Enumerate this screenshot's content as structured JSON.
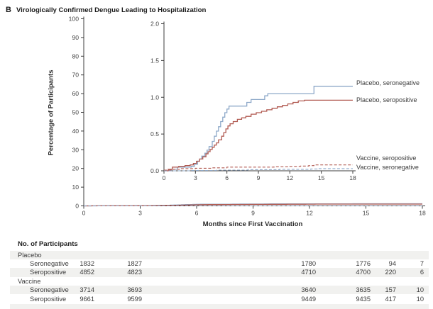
{
  "figure": {
    "panel_letter": "B",
    "title": "Virologically Confirmed Dengue Leading to Hospitalization"
  },
  "colors": {
    "placebo_line_blue": "#8ea9c9",
    "placebo_line_red": "#b15a51",
    "axis": "#3c3c3c",
    "table_band": "#f1f1ef"
  },
  "chart_data": {
    "type": "line",
    "title": "",
    "xlabel": "Months since First Vaccination",
    "ylabel": "Percentage of Participants",
    "main_axis": {
      "xlim": [
        0,
        18
      ],
      "ylim": [
        0,
        100
      ],
      "x_ticks": [
        0,
        3,
        6,
        9,
        12,
        15,
        18
      ],
      "y_ticks": [
        0,
        10,
        20,
        30,
        40,
        50,
        60,
        70,
        80,
        90,
        100
      ],
      "grid": false
    },
    "inset_axis": {
      "xlim": [
        0,
        18
      ],
      "ylim": [
        0,
        2.0
      ],
      "x_ticks": [
        0,
        3,
        6,
        9,
        12,
        15,
        18
      ],
      "y_ticks": [
        0,
        0.5,
        1.0,
        1.5,
        2.0
      ],
      "y_tick_labels": [
        "0.0",
        "0.5",
        "1.0",
        "1.5",
        "2.0"
      ],
      "grid": false
    },
    "legend_position": "right-of-inset-curve-ends",
    "series": [
      {
        "name": "Placebo, seronegative",
        "style": "solid",
        "color": "#8ea9c9",
        "points": [
          [
            0,
            0
          ],
          [
            0.7,
            0.02
          ],
          [
            1.3,
            0.05
          ],
          [
            2.6,
            0.06
          ],
          [
            2.9,
            0.09
          ],
          [
            3.2,
            0.13
          ],
          [
            3.4,
            0.16
          ],
          [
            3.6,
            0.2
          ],
          [
            3.9,
            0.24
          ],
          [
            4.1,
            0.28
          ],
          [
            4.3,
            0.33
          ],
          [
            4.6,
            0.4
          ],
          [
            4.8,
            0.47
          ],
          [
            5.0,
            0.54
          ],
          [
            5.2,
            0.6
          ],
          [
            5.4,
            0.67
          ],
          [
            5.6,
            0.73
          ],
          [
            5.8,
            0.79
          ],
          [
            6.0,
            0.84
          ],
          [
            6.2,
            0.88
          ],
          [
            7.9,
            0.93
          ],
          [
            8.3,
            0.97
          ],
          [
            9.6,
            1.02
          ],
          [
            9.9,
            1.05
          ],
          [
            14.3,
            1.15
          ],
          [
            18,
            1.15
          ]
        ]
      },
      {
        "name": "Placebo, seropositive",
        "style": "solid",
        "color": "#b15a51",
        "points": [
          [
            0,
            0
          ],
          [
            0.4,
            0.02
          ],
          [
            0.8,
            0.05
          ],
          [
            1.4,
            0.06
          ],
          [
            2.0,
            0.07
          ],
          [
            2.5,
            0.08
          ],
          [
            2.8,
            0.1
          ],
          [
            3.1,
            0.13
          ],
          [
            3.4,
            0.16
          ],
          [
            3.7,
            0.19
          ],
          [
            4.0,
            0.23
          ],
          [
            4.2,
            0.26
          ],
          [
            4.4,
            0.29
          ],
          [
            4.6,
            0.32
          ],
          [
            4.8,
            0.35
          ],
          [
            5.0,
            0.38
          ],
          [
            5.2,
            0.42
          ],
          [
            5.5,
            0.47
          ],
          [
            5.7,
            0.52
          ],
          [
            5.9,
            0.57
          ],
          [
            6.1,
            0.61
          ],
          [
            6.3,
            0.64
          ],
          [
            6.6,
            0.67
          ],
          [
            7.0,
            0.7
          ],
          [
            7.4,
            0.72
          ],
          [
            7.8,
            0.74
          ],
          [
            8.3,
            0.77
          ],
          [
            8.8,
            0.79
          ],
          [
            9.3,
            0.81
          ],
          [
            9.8,
            0.83
          ],
          [
            10.3,
            0.85
          ],
          [
            10.8,
            0.87
          ],
          [
            11.3,
            0.89
          ],
          [
            11.8,
            0.91
          ],
          [
            12.3,
            0.93
          ],
          [
            12.8,
            0.95
          ],
          [
            13.4,
            0.96
          ],
          [
            18,
            0.96
          ]
        ]
      },
      {
        "name": "Vaccine, seropositive",
        "style": "dashed",
        "color": "#b15a51",
        "points": [
          [
            0,
            0.01
          ],
          [
            0.8,
            0.02
          ],
          [
            1.6,
            0.03
          ],
          [
            3.0,
            0.035
          ],
          [
            4.5,
            0.04
          ],
          [
            6.0,
            0.05
          ],
          [
            9.0,
            0.05
          ],
          [
            10.5,
            0.055
          ],
          [
            12.0,
            0.06
          ],
          [
            13.0,
            0.065
          ],
          [
            13.8,
            0.07
          ],
          [
            14.3,
            0.08
          ],
          [
            18,
            0.08
          ]
        ]
      },
      {
        "name": "Vaccine, seronegative",
        "style": "dashed",
        "color": "#8ea9c9",
        "points": [
          [
            0,
            0
          ],
          [
            2.5,
            0.005
          ],
          [
            5.0,
            0.01
          ],
          [
            8.0,
            0.015
          ],
          [
            11.0,
            0.02
          ],
          [
            14.0,
            0.025
          ],
          [
            14.6,
            0.03
          ],
          [
            18,
            0.03
          ]
        ]
      }
    ]
  },
  "participants_table": {
    "title": "No. of Participants",
    "rows": [
      {
        "label": "Placebo",
        "indent": 0,
        "shaded": true,
        "values": []
      },
      {
        "label": "Seronegative",
        "indent": 1,
        "shaded": false,
        "values": [
          "1832",
          "1827",
          "1780",
          "1776",
          "94",
          "7"
        ]
      },
      {
        "label": "Seropositive",
        "indent": 1,
        "shaded": true,
        "values": [
          "4852",
          "4823",
          "4710",
          "4700",
          "220",
          "6"
        ]
      },
      {
        "label": "Vaccine",
        "indent": 0,
        "shaded": false,
        "values": []
      },
      {
        "label": "Seronegative",
        "indent": 1,
        "shaded": true,
        "values": [
          "3714",
          "3693",
          "3640",
          "3635",
          "157",
          "10"
        ]
      },
      {
        "label": "Seropositive",
        "indent": 1,
        "shaded": false,
        "values": [
          "9661",
          "9599",
          "9449",
          "9435",
          "417",
          "10"
        ]
      }
    ]
  }
}
